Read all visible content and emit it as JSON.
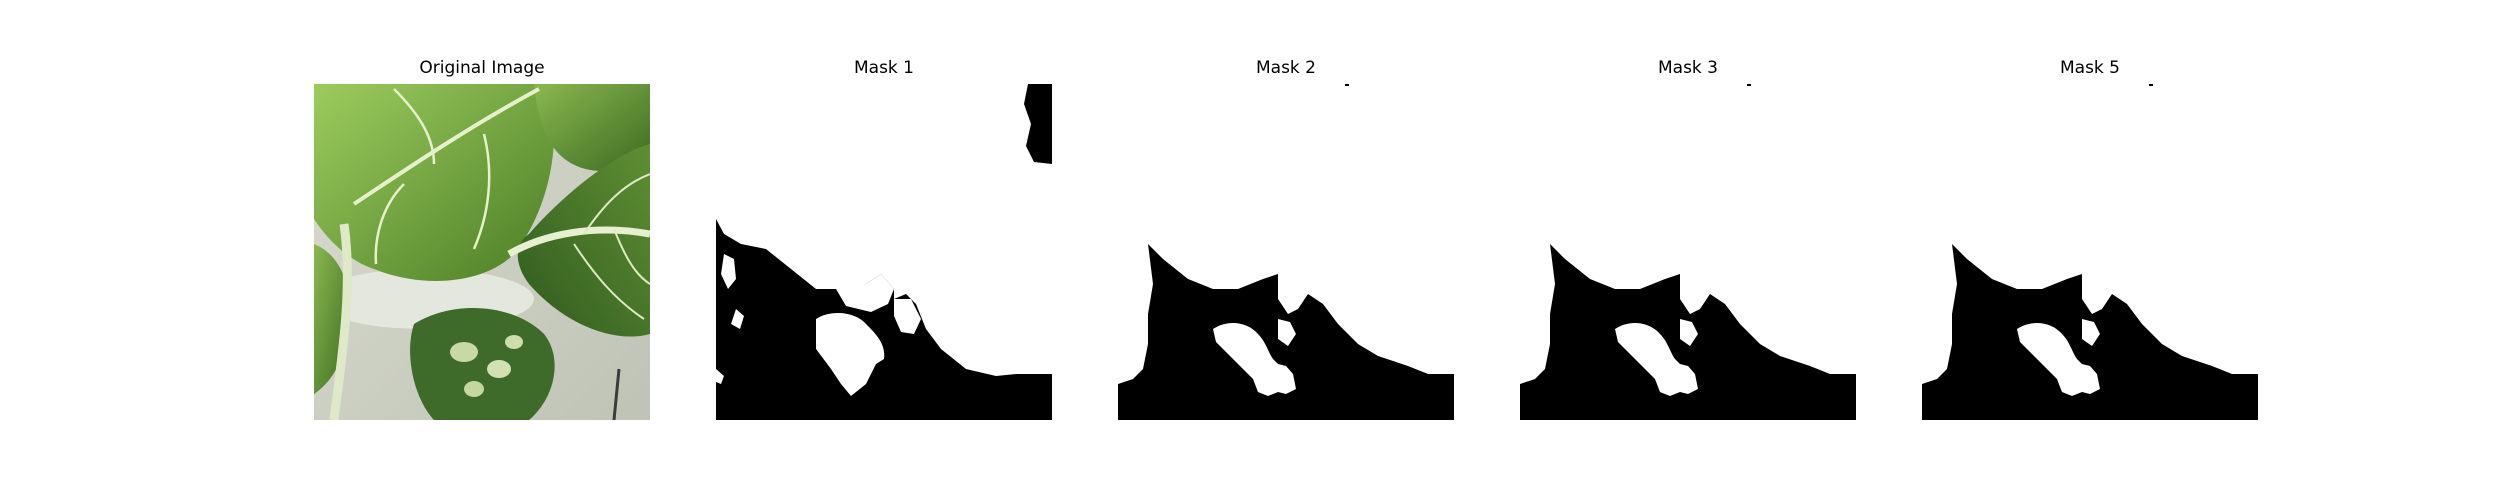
{
  "panels": [
    {
      "title": "Original Image",
      "kind": "photo"
    },
    {
      "title": "Mask 1",
      "kind": "mask"
    },
    {
      "title": "Mask 2",
      "kind": "mask"
    },
    {
      "title": "Mask 3",
      "kind": "mask"
    },
    {
      "title": "Mask 5",
      "kind": "mask"
    }
  ],
  "colors": {
    "background": "#ffffff",
    "mask_foreground": "#ffffff",
    "mask_background": "#000000",
    "leaf_dark": "#4f7e2a",
    "leaf_light": "#8fbf55",
    "vein": "#e6f0cc"
  }
}
